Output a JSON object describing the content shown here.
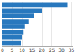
{
  "chart_data": {
    "type": "bar",
    "orientation": "horizontal",
    "categories": [
      null,
      null,
      null,
      null,
      null,
      null,
      null,
      null
    ],
    "values": [
      33,
      20,
      16,
      13.5,
      11.5,
      10.5,
      10,
      9.5
    ],
    "color": "#2878BE",
    "xlim": [
      0,
      36
    ],
    "xticks": [
      0,
      5,
      10,
      15,
      20,
      25,
      30,
      35
    ],
    "grid": true,
    "tick_labels": "x"
  }
}
